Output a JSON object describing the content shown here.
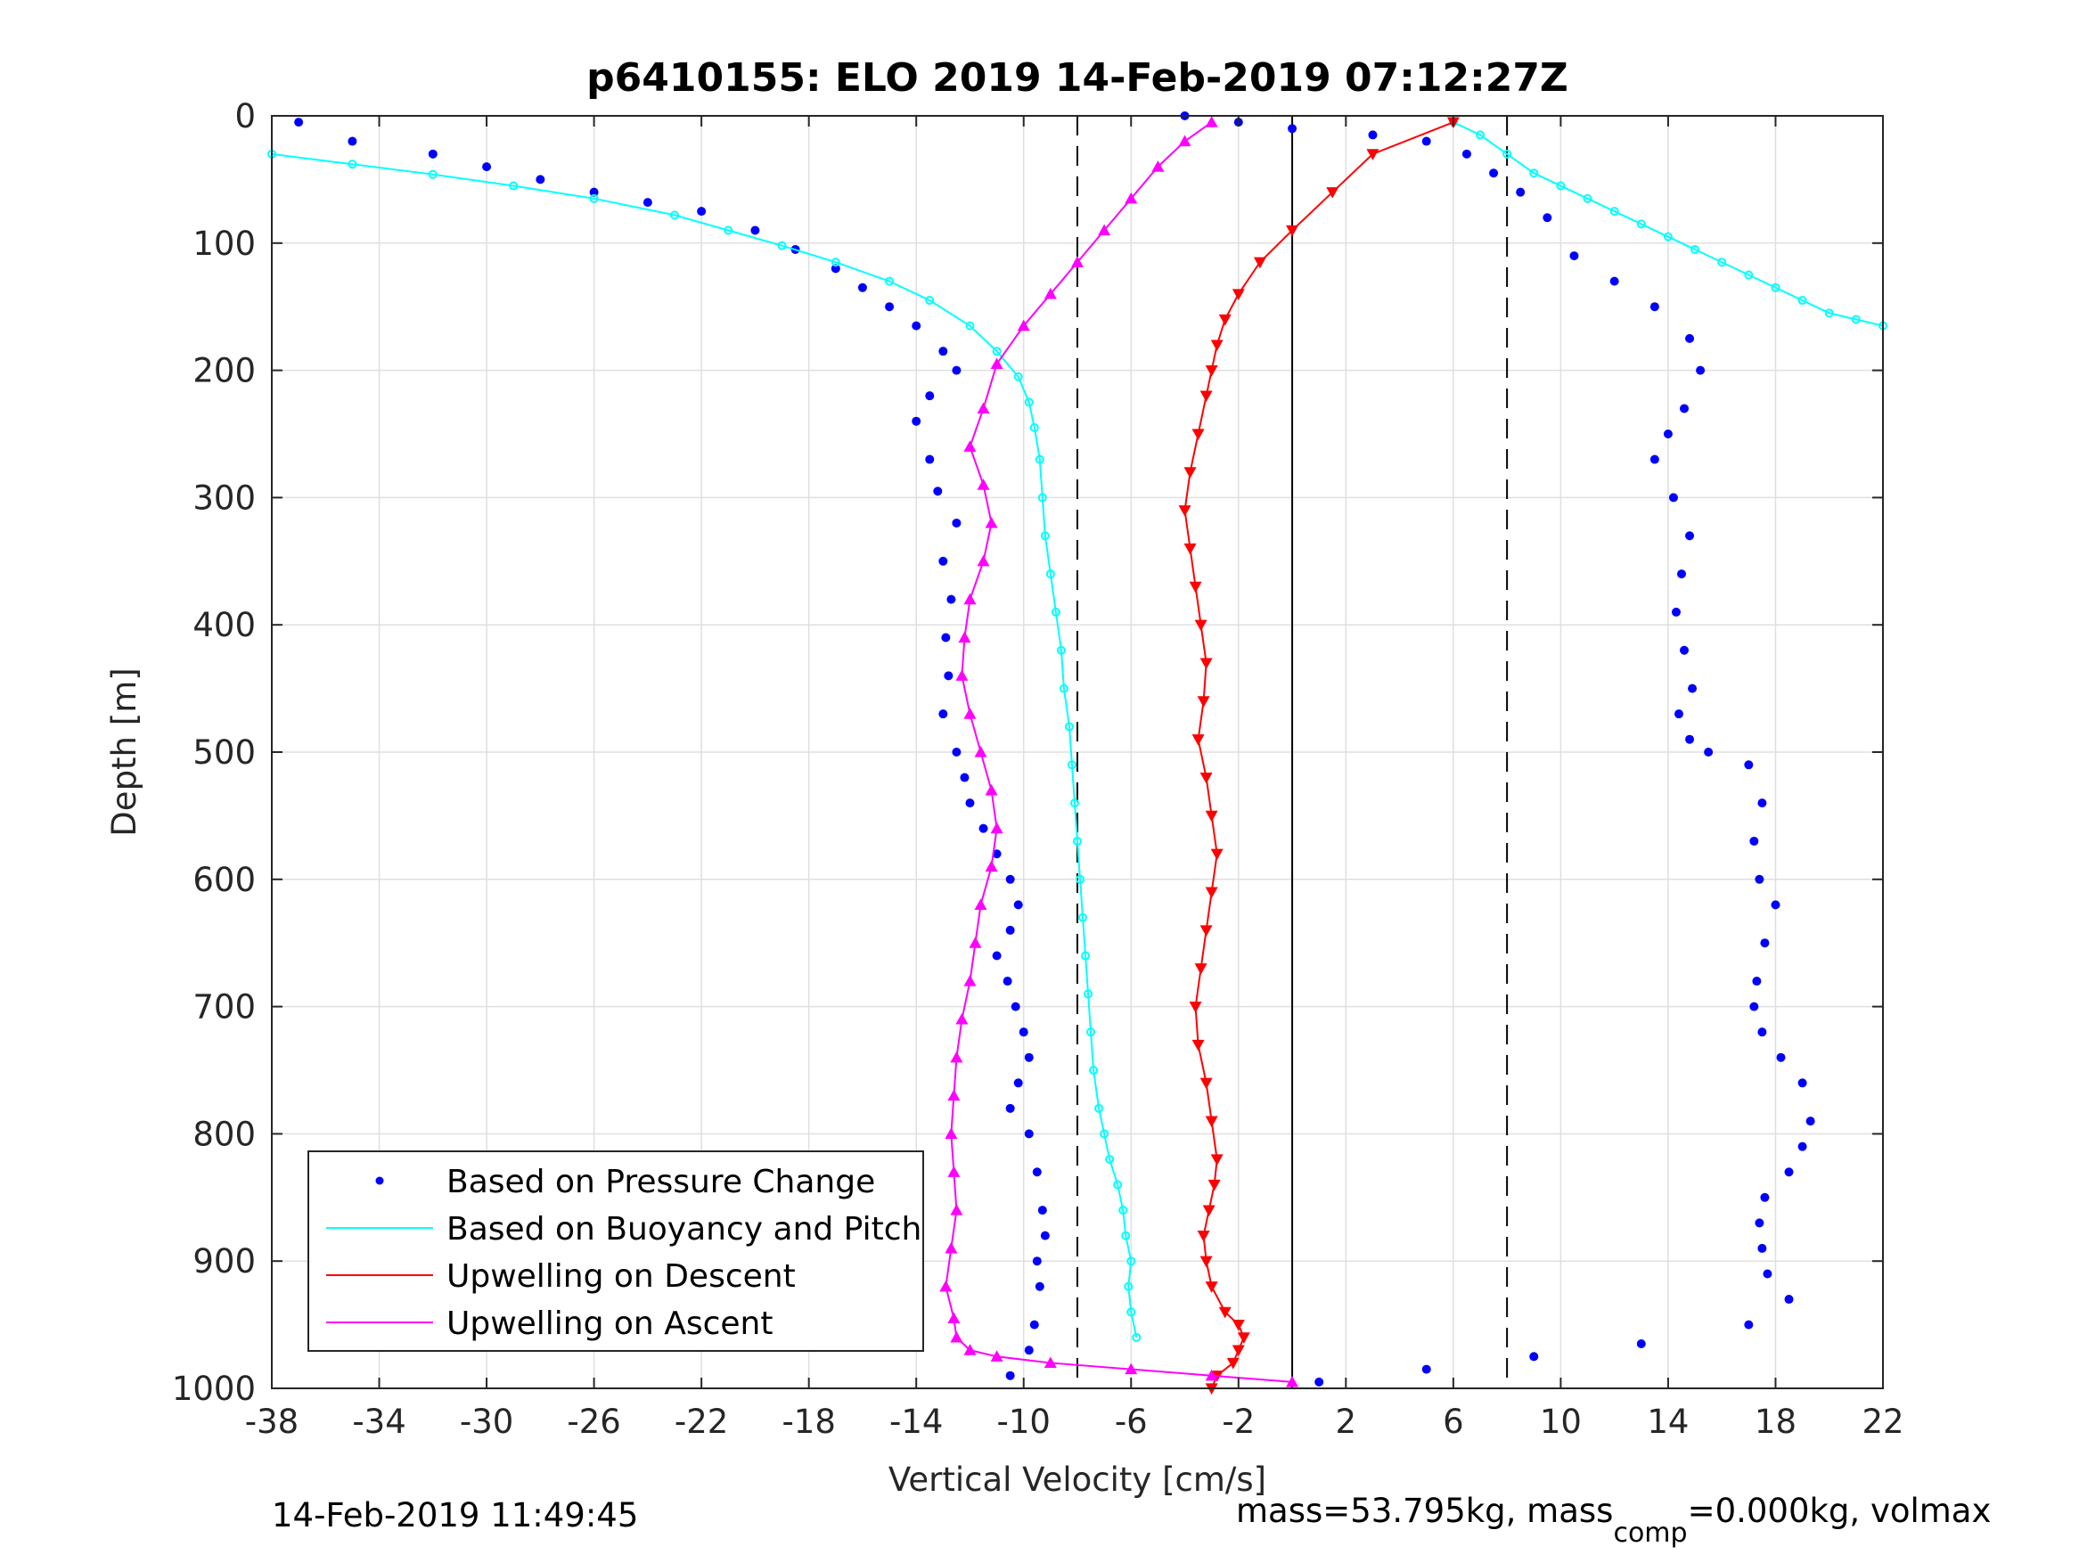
{
  "chart_data": {
    "type": "scatter",
    "title": "p6410155: ELO 2019 14-Feb-2019 07:12:27Z",
    "xlabel": "Vertical Velocity [cm/s]",
    "ylabel": "Depth [m]",
    "xlim": [
      -38,
      22
    ],
    "ylim": [
      0,
      1000
    ],
    "y_reversed": true,
    "grid": true,
    "legend_position": "bottom-left",
    "x_ticks": [
      -38,
      -34,
      -30,
      -26,
      -22,
      -18,
      -14,
      -10,
      -6,
      -2,
      2,
      6,
      10,
      14,
      18,
      22
    ],
    "x_tick_labels": [
      "-38",
      "-34",
      "-30",
      "-26",
      "-22",
      "-18",
      "-14",
      "-10",
      "-6",
      "-2",
      "2",
      "6",
      "10",
      "14",
      "18",
      "22"
    ],
    "y_ticks": [
      0,
      100,
      200,
      300,
      400,
      500,
      600,
      700,
      800,
      900,
      1000
    ],
    "y_tick_labels": [
      "0",
      "100",
      "200",
      "300",
      "400",
      "500",
      "600",
      "700",
      "800",
      "900",
      "1000"
    ],
    "reference_lines": {
      "solid_x": [
        0
      ],
      "dashed_x": [
        -8,
        8
      ]
    },
    "series": [
      {
        "name": "Based on Pressure Change",
        "color": "#0000ff",
        "style": "dots",
        "segments": [
          {
            "x": [
              -37,
              -35,
              -32,
              -30,
              -28,
              -26,
              -24,
              -22,
              -20,
              -18.5,
              -17,
              -16,
              -15,
              -14,
              -13,
              -12.5,
              -13.5,
              -14,
              -13.5,
              -13.2,
              -12.5,
              -13,
              -12.7,
              -12.9,
              -12.8,
              -13,
              -12.5,
              -12.2,
              -12,
              -11.5,
              -11,
              -10.5,
              -10.2,
              -10.5,
              -11,
              -10.6,
              -10.3,
              -10,
              -9.8,
              -10.2,
              -10.5,
              -9.8,
              -9.5,
              -9.3,
              -9.2,
              -9.5,
              -9.4,
              -9.6,
              -9.8,
              -10.5
            ],
            "y": [
              5,
              20,
              30,
              40,
              50,
              60,
              68,
              75,
              90,
              105,
              120,
              135,
              150,
              165,
              185,
              200,
              220,
              240,
              270,
              295,
              320,
              350,
              380,
              410,
              440,
              470,
              500,
              520,
              540,
              560,
              580,
              600,
              620,
              640,
              660,
              680,
              700,
              720,
              740,
              760,
              780,
              800,
              830,
              860,
              880,
              900,
              920,
              950,
              970,
              990
            ]
          },
          {
            "x": [
              -4,
              -2,
              0,
              3,
              5,
              6.5,
              7.5,
              8.5,
              9.5,
              10.5,
              12,
              13.5,
              14.8,
              15.2,
              14.6,
              14,
              13.5,
              14.2,
              14.8,
              14.5,
              14.3,
              14.6,
              14.9,
              14.4,
              14.8,
              15.5,
              17,
              17.5,
              17.2,
              17.4,
              18,
              17.6,
              17.3,
              17.2,
              17.5,
              18.2,
              19,
              19.3,
              19,
              18.5,
              17.6,
              17.4,
              17.5,
              17.7,
              18.5,
              17,
              13,
              9,
              5,
              1
            ],
            "y": [
              0,
              5,
              10,
              15,
              20,
              30,
              45,
              60,
              80,
              110,
              130,
              150,
              175,
              200,
              230,
              250,
              270,
              300,
              330,
              360,
              390,
              420,
              450,
              470,
              490,
              500,
              510,
              540,
              570,
              600,
              620,
              650,
              680,
              700,
              720,
              740,
              760,
              790,
              810,
              830,
              850,
              870,
              890,
              910,
              930,
              950,
              965,
              975,
              985,
              995
            ]
          }
        ]
      },
      {
        "name": "Based on Buoyancy and Pitch",
        "color": "#00ffff",
        "style": "line-open-markers",
        "segments": [
          {
            "x": [
              -38,
              -35,
              -32,
              -29,
              -26,
              -23,
              -21,
              -19,
              -17,
              -15,
              -13.5,
              -12,
              -11,
              -10.2,
              -9.8,
              -9.6,
              -9.4,
              -9.3,
              -9.2,
              -9,
              -8.8,
              -8.6,
              -8.5,
              -8.3,
              -8.2,
              -8.1,
              -8,
              -7.9,
              -7.8,
              -7.7,
              -7.6,
              -7.5,
              -7.4,
              -7.2,
              -7,
              -6.8,
              -6.5,
              -6.3,
              -6.2,
              -6,
              -6.1,
              -6,
              -5.8
            ],
            "y": [
              30,
              38,
              46,
              55,
              65,
              78,
              90,
              102,
              115,
              130,
              145,
              165,
              185,
              205,
              225,
              245,
              270,
              300,
              330,
              360,
              390,
              420,
              450,
              480,
              510,
              540,
              570,
              600,
              630,
              660,
              690,
              720,
              750,
              780,
              800,
              820,
              840,
              860,
              880,
              900,
              920,
              940,
              960
            ]
          },
          {
            "x": [
              6,
              7,
              8,
              9,
              10,
              11,
              12,
              13,
              14,
              15,
              16,
              17,
              18,
              19,
              20,
              21,
              22
            ],
            "y": [
              5,
              15,
              30,
              45,
              55,
              65,
              75,
              85,
              95,
              105,
              115,
              125,
              135,
              145,
              155,
              160,
              165
            ]
          }
        ]
      },
      {
        "name": "Upwelling on Descent",
        "color": "#ff0000",
        "style": "line-down-triangles",
        "segments": [
          {
            "x": [
              6,
              3,
              1.5,
              0,
              -1.2,
              -2,
              -2.5,
              -2.8,
              -3,
              -3.2,
              -3.5,
              -3.8,
              -4,
              -3.8,
              -3.6,
              -3.4,
              -3.2,
              -3.3,
              -3.5,
              -3.2,
              -3,
              -2.8,
              -3,
              -3.2,
              -3.4,
              -3.6,
              -3.5,
              -3.2,
              -3,
              -2.8,
              -2.9,
              -3.1,
              -3.3,
              -3.2,
              -3,
              -2.5,
              -2,
              -1.8,
              -2,
              -2.2,
              -2.8,
              -3
            ],
            "y": [
              5,
              30,
              60,
              90,
              115,
              140,
              160,
              180,
              200,
              220,
              250,
              280,
              310,
              340,
              370,
              400,
              430,
              460,
              490,
              520,
              550,
              580,
              610,
              640,
              670,
              700,
              730,
              760,
              790,
              820,
              840,
              860,
              880,
              900,
              920,
              940,
              950,
              960,
              970,
              980,
              990,
              1000
            ]
          }
        ]
      },
      {
        "name": "Upwelling on Ascent",
        "color": "#ff00ff",
        "style": "line-up-triangles",
        "segments": [
          {
            "x": [
              -3,
              -4,
              -5,
              -6,
              -7,
              -8,
              -9,
              -10,
              -11,
              -11.5,
              -12,
              -11.5,
              -11.2,
              -11.5,
              -12,
              -12.2,
              -12.3,
              -12,
              -11.6,
              -11.2,
              -11,
              -11.2,
              -11.6,
              -11.8,
              -12,
              -12.3,
              -12.5,
              -12.6,
              -12.7,
              -12.6,
              -12.5,
              -12.7,
              -12.9,
              -12.6,
              -12.5,
              -12,
              -11,
              -9,
              -6,
              -3,
              0
            ],
            "y": [
              5,
              20,
              40,
              65,
              90,
              115,
              140,
              165,
              195,
              230,
              260,
              290,
              320,
              350,
              380,
              410,
              440,
              470,
              500,
              530,
              560,
              590,
              620,
              650,
              680,
              710,
              740,
              770,
              800,
              830,
              860,
              890,
              920,
              945,
              960,
              970,
              975,
              980,
              985,
              990,
              995
            ]
          }
        ]
      }
    ]
  },
  "legend": {
    "items": [
      {
        "label": "Based on Pressure Change",
        "color": "#0000ff",
        "kind": "dot"
      },
      {
        "label": "Based on Buoyancy and Pitch",
        "color": "#00ffff",
        "kind": "line"
      },
      {
        "label": "Upwelling on Descent",
        "color": "#ff0000",
        "kind": "line"
      },
      {
        "label": "Upwelling on Ascent",
        "color": "#ff00ff",
        "kind": "line"
      }
    ]
  },
  "footer": {
    "timestamp": "14-Feb-2019 11:49:45",
    "mass_prefix": "mass=53.795kg, mass",
    "mass_sub": "comp",
    "mass_suffix": "=0.000kg, volmax"
  }
}
